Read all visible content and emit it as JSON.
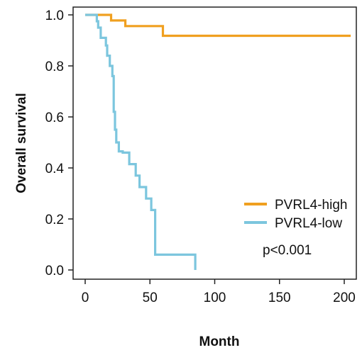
{
  "chart_data": {
    "type": "line",
    "step": true,
    "xlabel": "Month",
    "ylabel": "Overall survival",
    "xlim": [
      0,
      205
    ],
    "ylim": [
      0,
      1.0
    ],
    "xticks": [
      0,
      50,
      100,
      150,
      200
    ],
    "yticks": [
      0.0,
      0.2,
      0.4,
      0.6,
      0.8,
      1.0
    ],
    "xtick_labels": [
      "0",
      "50",
      "100",
      "150",
      "200"
    ],
    "ytick_labels": [
      "0.0",
      "0.2",
      "0.4",
      "0.6",
      "0.8",
      "1.0"
    ],
    "legend_position": "lower-right",
    "annotation": "p<0.001",
    "series": [
      {
        "name": "PVRL4-high",
        "color": "#f0a020",
        "x": [
          0,
          20,
          20,
          31,
          31,
          60,
          60,
          205
        ],
        "y": [
          1.0,
          1.0,
          0.978,
          0.978,
          0.956,
          0.956,
          0.918,
          0.918
        ]
      },
      {
        "name": "PVRL4-low",
        "color": "#7cc6de",
        "x": [
          0,
          9,
          9,
          10,
          10,
          12,
          12,
          16,
          16,
          17,
          17,
          19,
          19,
          21,
          21,
          22,
          22,
          23,
          23,
          24,
          24,
          26,
          26,
          29,
          29,
          34,
          34,
          39,
          39,
          42,
          42,
          47,
          47,
          51,
          51,
          54,
          54,
          57,
          57,
          85,
          85
        ],
        "y": [
          1.0,
          1.0,
          0.975,
          0.975,
          0.95,
          0.95,
          0.91,
          0.91,
          0.88,
          0.88,
          0.84,
          0.84,
          0.8,
          0.8,
          0.76,
          0.76,
          0.62,
          0.62,
          0.55,
          0.55,
          0.5,
          0.5,
          0.465,
          0.465,
          0.46,
          0.46,
          0.415,
          0.415,
          0.37,
          0.37,
          0.325,
          0.325,
          0.28,
          0.28,
          0.235,
          0.235,
          0.06,
          0.06,
          0.06,
          0.06,
          0.0
        ]
      }
    ]
  }
}
